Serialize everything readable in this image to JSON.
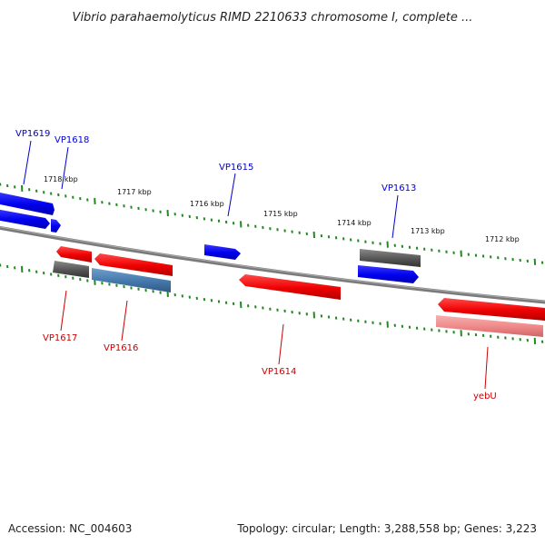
{
  "title": "Vibrio parahaemolyticus RIMD 2210633 chromosome I, complete ...",
  "footer": {
    "accession": "Accession: NC_004603",
    "topology": "Topology: circular; Length: 3,288,558 bp; Genes: 3,223"
  },
  "colors": {
    "forward_gene": "#0000ee",
    "reverse_gene": "#ee0000",
    "pseudo_dark": "#555555",
    "blue_steel": "#4477aa",
    "pink": "#ee8888",
    "backbone": "#888888",
    "ticks": "#228822",
    "label_forward": "#0000cc",
    "label_reverse": "#cc0000"
  },
  "kbp_labels": [
    "1718 kbp",
    "1717 kbp",
    "1716 kbp",
    "1715 kbp",
    "1714 kbp",
    "1713 kbp",
    "1712 kbp"
  ],
  "forward_labels": [
    "VP1619",
    "VP1618",
    "VP1615",
    "VP1613"
  ],
  "reverse_labels": [
    "VP1617",
    "VP1616",
    "VP1614",
    "yebU"
  ]
}
